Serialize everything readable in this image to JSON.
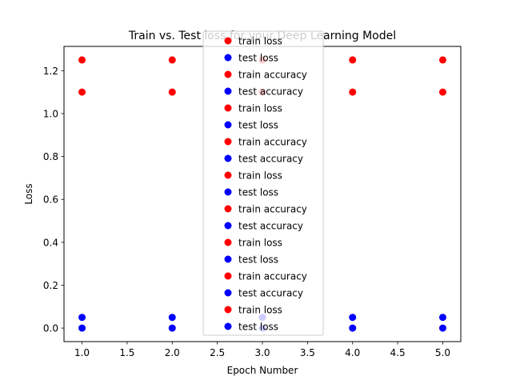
{
  "chart_data": {
    "type": "scatter",
    "title": "Train vs. Test loss for your Deep Learning Model",
    "xlabel": "Epoch Number",
    "ylabel": "Loss",
    "xlim": [
      0.8,
      5.2
    ],
    "ylim": [
      -0.063,
      1.313
    ],
    "xticks": [
      1.0,
      1.5,
      2.0,
      2.5,
      3.0,
      3.5,
      4.0,
      4.5,
      5.0
    ],
    "yticks": [
      0.0,
      0.2,
      0.4,
      0.6,
      0.8,
      1.0,
      1.2
    ],
    "xtick_labels": [
      "1.0",
      "1.5",
      "2.0",
      "2.5",
      "3.0",
      "3.5",
      "4.0",
      "4.5",
      "5.0"
    ],
    "ytick_labels": [
      "0.0",
      "0.2",
      "0.4",
      "0.6",
      "0.8",
      "1.0",
      "1.2"
    ],
    "grid": false,
    "legend_position": "top-center",
    "colors": {
      "train": "#ff0000",
      "test": "#0000ff"
    },
    "series": [
      {
        "name": "train loss",
        "color": "#ff0000",
        "x": [
          1,
          2,
          3,
          4,
          5
        ],
        "y": [
          1.25,
          1.25,
          1.25,
          1.25,
          1.25
        ]
      },
      {
        "name": "test loss",
        "color": "#0000ff",
        "x": [
          1,
          2,
          3,
          4,
          5
        ],
        "y": [
          0.05,
          0.05,
          0.05,
          0.05,
          0.05
        ]
      },
      {
        "name": "train accuracy",
        "color": "#ff0000",
        "x": [
          1,
          2,
          3,
          4,
          5
        ],
        "y": [
          1.1,
          1.1,
          1.1,
          1.1,
          1.1
        ]
      },
      {
        "name": "test accuracy",
        "color": "#0000ff",
        "x": [
          1,
          2,
          3,
          4,
          5
        ],
        "y": [
          0.0,
          0.0,
          0.0,
          0.0,
          0.0
        ]
      }
    ],
    "legend_entries": [
      {
        "label": "train loss",
        "color": "#ff0000"
      },
      {
        "label": "test loss",
        "color": "#0000ff"
      },
      {
        "label": "train accuracy",
        "color": "#ff0000"
      },
      {
        "label": "test accuracy",
        "color": "#0000ff"
      },
      {
        "label": "train loss",
        "color": "#ff0000"
      },
      {
        "label": "test loss",
        "color": "#0000ff"
      },
      {
        "label": "train accuracy",
        "color": "#ff0000"
      },
      {
        "label": "test accuracy",
        "color": "#0000ff"
      },
      {
        "label": "train loss",
        "color": "#ff0000"
      },
      {
        "label": "test loss",
        "color": "#0000ff"
      },
      {
        "label": "train accuracy",
        "color": "#ff0000"
      },
      {
        "label": "test accuracy",
        "color": "#0000ff"
      },
      {
        "label": "train loss",
        "color": "#ff0000"
      },
      {
        "label": "test loss",
        "color": "#0000ff"
      },
      {
        "label": "train accuracy",
        "color": "#ff0000"
      },
      {
        "label": "test accuracy",
        "color": "#0000ff"
      },
      {
        "label": "train loss",
        "color": "#ff0000"
      },
      {
        "label": "test loss",
        "color": "#0000ff"
      }
    ]
  }
}
